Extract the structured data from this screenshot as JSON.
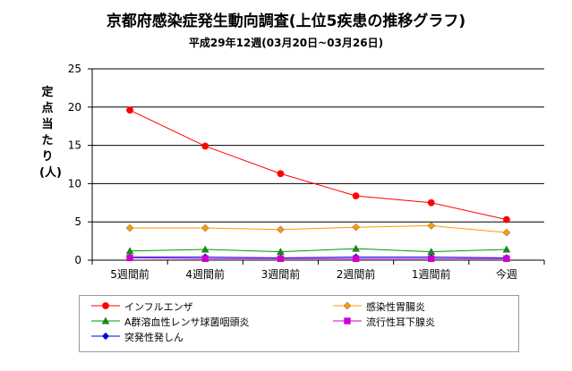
{
  "chart_data": {
    "type": "line",
    "title": "京都府感染症発生動向調査(上位5疾患の推移グラフ)",
    "subtitle": "平成29年12週(03月20日~03月26日)",
    "ylabel": "定点当たり(人)",
    "xlabel": "",
    "categories": [
      "5週間前",
      "4週間前",
      "3週間前",
      "2週間前",
      "1週間前",
      "今週"
    ],
    "ylim": [
      0,
      25
    ],
    "yticks": [
      0,
      5,
      10,
      15,
      20,
      25
    ],
    "grid": true,
    "legend_position": "bottom",
    "series": [
      {
        "name": "インフルエンザ",
        "color": "#ff0000",
        "marker": "circle",
        "values": [
          19.6,
          14.9,
          11.3,
          8.4,
          7.5,
          5.3
        ]
      },
      {
        "name": "感染性胃腸炎",
        "color": "#ff9900",
        "marker": "diamond",
        "values": [
          4.2,
          4.2,
          4.0,
          4.3,
          4.5,
          3.6
        ]
      },
      {
        "name": "A群溶血性レンサ球菌咽頭炎",
        "color": "#009900",
        "marker": "triangle",
        "values": [
          1.2,
          1.4,
          1.1,
          1.5,
          1.1,
          1.4
        ]
      },
      {
        "name": "流行性耳下腺炎",
        "color": "#cc00cc",
        "marker": "square",
        "values": [
          0.3,
          0.2,
          0.2,
          0.2,
          0.2,
          0.2
        ]
      },
      {
        "name": "突発性発しん",
        "color": "#0000ff",
        "marker": "diamond",
        "values": [
          0.4,
          0.4,
          0.3,
          0.4,
          0.4,
          0.3
        ]
      }
    ]
  }
}
